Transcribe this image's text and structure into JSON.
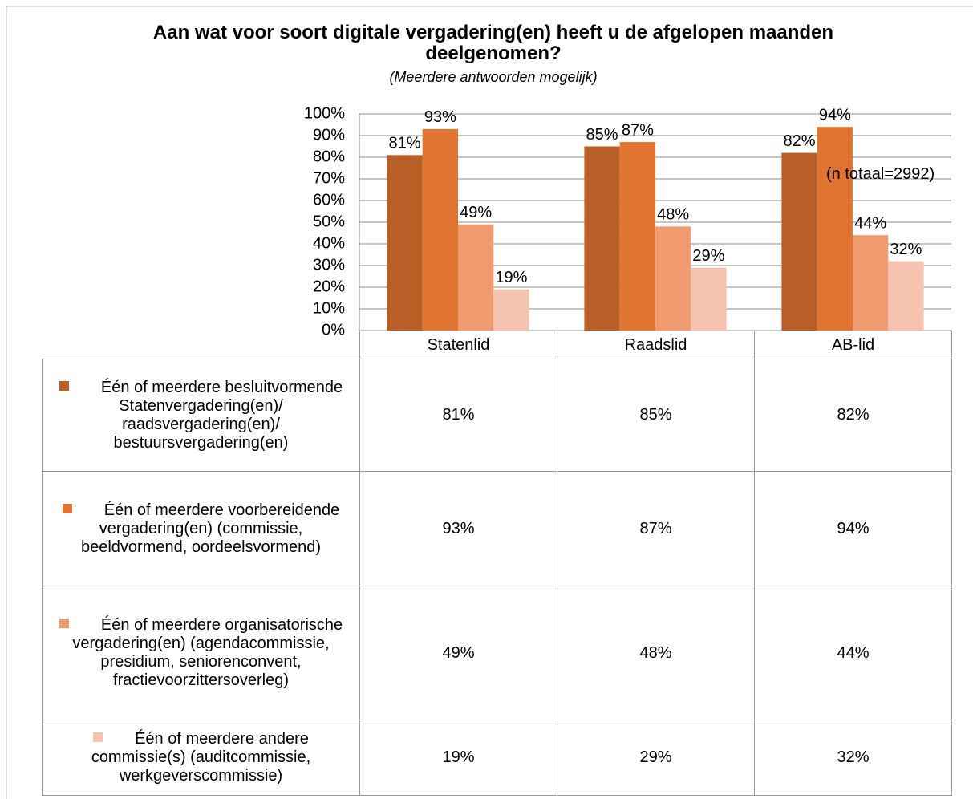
{
  "chart_data": {
    "type": "bar",
    "title": "Aan wat voor soort digitale vergadering(en) heeft u de afgelopen maanden deelgenomen?",
    "subtitle": "(Meerdere antwoorden mogelijk)",
    "annotation": "(n totaal=2992)",
    "categories": [
      "Statenlid",
      "Raadslid",
      "AB-lid"
    ],
    "series": [
      {
        "name": "Één of meerdere besluitvormende Statenvergadering(en)/ raadsvergadering(en)/ bestuursvergadering(en)",
        "color": "#b85f27",
        "values": [
          81,
          85,
          82
        ],
        "value_labels": [
          "81%",
          "85%",
          "82%"
        ]
      },
      {
        "name": "Één of meerdere voorbereidende vergadering(en) (commissie, beeldvormend, oordeelsvormend)",
        "color": "#e07430",
        "values": [
          93,
          87,
          94
        ],
        "value_labels": [
          "93%",
          "87%",
          "94%"
        ]
      },
      {
        "name": "Één of meerdere organisatorische vergadering(en) (agendacommissie, presidium, seniorenconvent, fractievoorzittersoverleg)",
        "color": "#f19b70",
        "values": [
          49,
          48,
          44
        ],
        "value_labels": [
          "49%",
          "48%",
          "44%"
        ]
      },
      {
        "name": "Één of meerdere andere commissie(s) (auditcommissie, werkgeverscommissie)",
        "color": "#f6c3b0",
        "values": [
          19,
          29,
          32
        ],
        "value_labels": [
          "19%",
          "29%",
          "32%"
        ]
      }
    ],
    "ylim": [
      0,
      100
    ],
    "yticks": [
      {
        "value": 0,
        "label": "0%"
      },
      {
        "value": 10,
        "label": "10%"
      },
      {
        "value": 20,
        "label": "20%"
      },
      {
        "value": 30,
        "label": "30%"
      },
      {
        "value": 40,
        "label": "40%"
      },
      {
        "value": 50,
        "label": "50%"
      },
      {
        "value": 60,
        "label": "60%"
      },
      {
        "value": 70,
        "label": "70%"
      },
      {
        "value": 80,
        "label": "80%"
      },
      {
        "value": 90,
        "label": "90%"
      },
      {
        "value": 100,
        "label": "100%"
      }
    ],
    "grid": true
  }
}
